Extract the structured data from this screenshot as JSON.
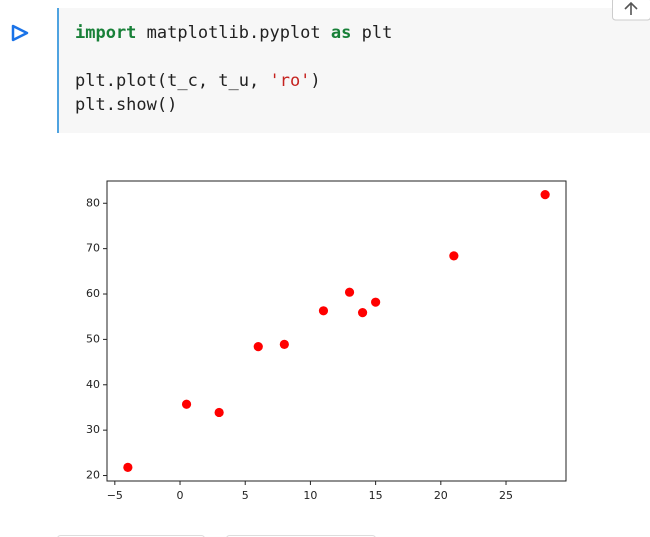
{
  "code": {
    "lines": [
      [
        {
          "text": "import",
          "color": "#188038",
          "bold": true
        },
        {
          "text": " matplotlib.pyplot ",
          "color": "#212121",
          "bold": false
        },
        {
          "text": "as",
          "color": "#188038",
          "bold": true
        },
        {
          "text": " plt",
          "color": "#212121",
          "bold": false
        }
      ],
      [],
      [
        {
          "text": "plt.plot(t_c, t_u, ",
          "color": "#212121",
          "bold": false
        },
        {
          "text": "'ro'",
          "color": "#c5221f",
          "bold": false
        },
        {
          "text": ")",
          "color": "#212121",
          "bold": false
        }
      ],
      [
        {
          "text": "plt.show()",
          "color": "#212121",
          "bold": false
        }
      ]
    ]
  },
  "chart_data": {
    "type": "scatter",
    "x": [
      0.5,
      14.0,
      15.0,
      28.0,
      11.0,
      8.0,
      3.0,
      -4.0,
      6.0,
      13.0,
      21.0
    ],
    "series": [
      {
        "color": "#ff0000",
        "values": [
          35.7,
          55.9,
          58.2,
          81.9,
          56.3,
          48.9,
          33.9,
          21.8,
          48.4,
          60.4,
          68.4
        ]
      }
    ],
    "xlim": [
      -5.6,
      29.6
    ],
    "ylim": [
      18.795,
      84.905
    ],
    "xticks": [
      {
        "value": -5,
        "label": "−5"
      },
      0,
      5,
      10,
      15,
      20,
      25
    ],
    "yticks": [
      20,
      30,
      40,
      50,
      60,
      70,
      80
    ],
    "grid": false
  }
}
